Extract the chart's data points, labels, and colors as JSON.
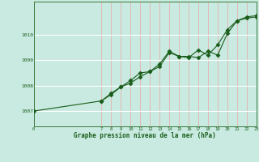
{
  "title": "Graphe pression niveau de la mer (hPa)",
  "background_color": "#c8eae0",
  "line_color": "#1a5c1a",
  "grid_color_v": "#e8b0b0",
  "grid_color_h": "#ffffff",
  "xlim": [
    0,
    23
  ],
  "ylim": [
    1006.4,
    1011.3
  ],
  "yticks": [
    1007,
    1008,
    1009,
    1010
  ],
  "xticks": [
    0,
    7,
    8,
    9,
    10,
    11,
    12,
    13,
    14,
    15,
    16,
    17,
    18,
    19,
    20,
    21,
    22,
    23
  ],
  "series1_x": [
    0,
    7,
    8,
    9,
    10,
    11,
    12,
    13,
    14,
    15,
    16,
    17,
    18,
    19,
    20,
    21,
    22,
    23
  ],
  "series1_y": [
    1007.0,
    1007.4,
    1007.7,
    1007.95,
    1008.1,
    1008.35,
    1008.55,
    1008.75,
    1009.3,
    1009.15,
    1009.15,
    1009.1,
    1009.35,
    1009.2,
    1010.05,
    1010.55,
    1010.65,
    1010.7
  ],
  "series2_x": [
    7,
    8,
    9,
    10,
    11,
    12,
    13,
    14,
    15,
    16,
    17,
    18,
    19,
    20,
    21,
    22,
    23
  ],
  "series2_y": [
    1007.4,
    1007.65,
    1007.95,
    1008.2,
    1008.5,
    1008.55,
    1008.85,
    1009.35,
    1009.15,
    1009.1,
    1009.4,
    1009.2,
    1009.6,
    1010.2,
    1010.55,
    1010.7,
    1010.75
  ]
}
